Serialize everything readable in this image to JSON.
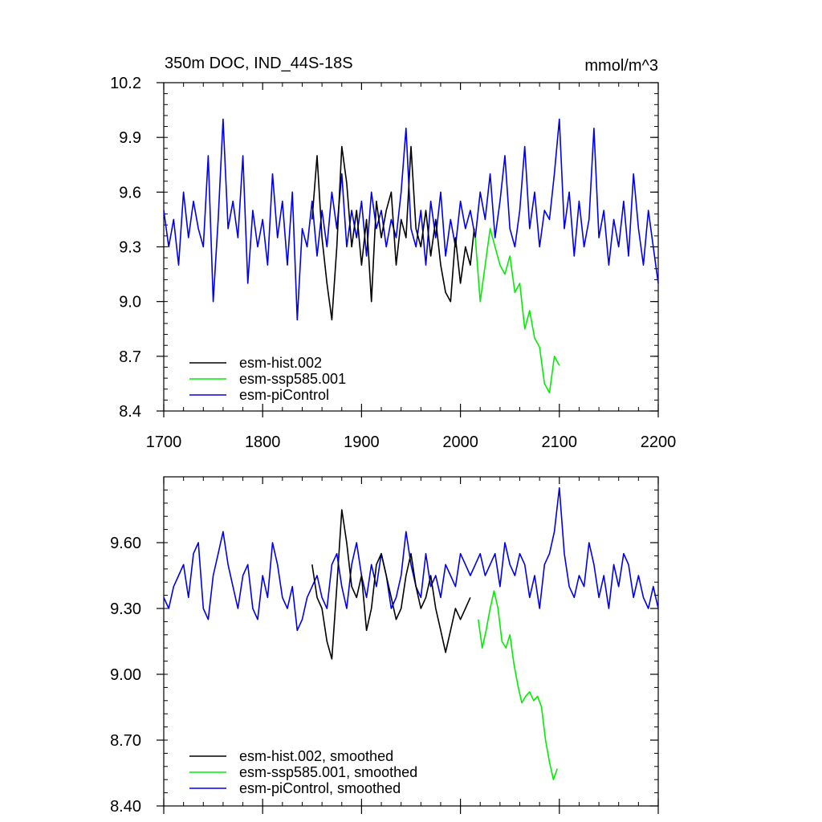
{
  "chart_data": [
    {
      "type": "line",
      "title": "350m DOC, IND_44S-18S",
      "units": "mmol/m^3",
      "xlabel": "",
      "ylabel": "",
      "xlim": [
        1700,
        2200
      ],
      "ylim": [
        8.4,
        10.2
      ],
      "x_ticks": [
        1700,
        1800,
        1900,
        2000,
        2100,
        2200
      ],
      "x_tick_labels": [
        "1700",
        "1800",
        "1900",
        "2000",
        "2100",
        "2200"
      ],
      "y_ticks": [
        8.4,
        8.7,
        9.0,
        9.3,
        9.6,
        9.9,
        10.2
      ],
      "y_tick_labels": [
        "8.4",
        "8.7",
        "9.0",
        "9.3",
        "9.6",
        "9.9",
        "10.2"
      ],
      "legend_position": "bottom-left",
      "series": [
        {
          "name": "esm-hist.002",
          "color": "#000000",
          "x": [
            1850,
            1855,
            1860,
            1865,
            1870,
            1875,
            1880,
            1885,
            1890,
            1895,
            1900,
            1905,
            1910,
            1915,
            1920,
            1925,
            1930,
            1935,
            1940,
            1945,
            1950,
            1955,
            1960,
            1965,
            1970,
            1975,
            1980,
            1985,
            1990,
            1995,
            2000,
            2005,
            2010,
            2014
          ],
          "values": [
            9.45,
            9.8,
            9.35,
            9.1,
            8.9,
            9.3,
            9.85,
            9.65,
            9.3,
            9.5,
            9.2,
            9.45,
            9.0,
            9.55,
            9.35,
            9.5,
            9.6,
            9.2,
            9.45,
            9.35,
            9.85,
            9.4,
            9.3,
            9.5,
            9.25,
            9.45,
            9.2,
            9.05,
            9.0,
            9.35,
            9.1,
            9.3,
            9.2,
            9.4
          ]
        },
        {
          "name": "esm-ssp585.001",
          "color": "#00ee00",
          "x": [
            2015,
            2020,
            2025,
            2030,
            2035,
            2040,
            2045,
            2050,
            2055,
            2060,
            2065,
            2070,
            2075,
            2080,
            2085,
            2090,
            2095,
            2100
          ],
          "values": [
            9.35,
            9.0,
            9.2,
            9.4,
            9.3,
            9.2,
            9.15,
            9.25,
            9.05,
            9.1,
            8.85,
            8.95,
            8.8,
            8.75,
            8.55,
            8.5,
            8.7,
            8.65
          ]
        },
        {
          "name": "esm-piControl",
          "color": "#0000ee",
          "x": [
            1700,
            1705,
            1710,
            1715,
            1720,
            1725,
            1730,
            1735,
            1740,
            1745,
            1750,
            1755,
            1760,
            1765,
            1770,
            1775,
            1780,
            1785,
            1790,
            1795,
            1800,
            1805,
            1810,
            1815,
            1820,
            1825,
            1830,
            1835,
            1840,
            1845,
            1850,
            1855,
            1860,
            1865,
            1870,
            1875,
            1880,
            1885,
            1890,
            1895,
            1900,
            1905,
            1910,
            1915,
            1920,
            1925,
            1930,
            1935,
            1940,
            1945,
            1950,
            1955,
            1960,
            1965,
            1970,
            1975,
            1980,
            1985,
            1990,
            1995,
            2000,
            2005,
            2010,
            2015,
            2020,
            2025,
            2030,
            2035,
            2040,
            2045,
            2050,
            2055,
            2060,
            2065,
            2070,
            2075,
            2080,
            2085,
            2090,
            2095,
            2100,
            2105,
            2110,
            2115,
            2120,
            2125,
            2130,
            2135,
            2140,
            2145,
            2150,
            2155,
            2160,
            2165,
            2170,
            2175,
            2180,
            2185,
            2190,
            2195,
            2200
          ],
          "values": [
            9.5,
            9.3,
            9.45,
            9.2,
            9.6,
            9.35,
            9.55,
            9.4,
            9.3,
            9.8,
            9.0,
            9.45,
            10.0,
            9.4,
            9.55,
            9.35,
            9.8,
            9.1,
            9.5,
            9.3,
            9.45,
            9.2,
            9.7,
            9.35,
            9.55,
            9.2,
            9.6,
            8.9,
            9.4,
            9.3,
            9.55,
            9.25,
            9.5,
            9.3,
            9.6,
            9.4,
            9.7,
            9.3,
            9.5,
            9.35,
            9.55,
            9.25,
            9.6,
            9.4,
            9.5,
            9.3,
            9.45,
            9.35,
            9.6,
            9.95,
            9.4,
            9.3,
            9.5,
            9.2,
            9.55,
            9.35,
            9.6,
            9.25,
            9.45,
            9.3,
            9.55,
            9.4,
            9.5,
            9.35,
            9.6,
            9.45,
            9.7,
            9.35,
            9.55,
            9.8,
            9.4,
            9.3,
            9.5,
            9.85,
            9.4,
            9.6,
            9.3,
            9.5,
            9.45,
            9.7,
            10.0,
            9.4,
            9.6,
            9.25,
            9.55,
            9.3,
            9.45,
            9.95,
            9.35,
            9.5,
            9.2,
            9.45,
            9.3,
            9.55,
            9.25,
            9.7,
            9.4,
            9.2,
            9.5,
            9.3,
            9.1
          ]
        }
      ]
    },
    {
      "type": "line",
      "title": "",
      "xlabel": "",
      "ylabel": "",
      "xlim": [
        1700,
        2200
      ],
      "ylim": [
        8.4,
        9.9
      ],
      "x_ticks": [
        1700,
        1800,
        1900,
        2000,
        2100,
        2200
      ],
      "y_ticks": [
        8.4,
        8.7,
        9.0,
        9.3,
        9.6
      ],
      "y_tick_labels": [
        "8.40",
        "8.70",
        "9.00",
        "9.30",
        "9.60"
      ],
      "legend_position": "bottom-left",
      "series": [
        {
          "name": "esm-hist.002, smoothed",
          "color": "#000000",
          "x": [
            1850,
            1855,
            1860,
            1865,
            1870,
            1875,
            1880,
            1885,
            1890,
            1895,
            1900,
            1905,
            1910,
            1915,
            1920,
            1925,
            1930,
            1935,
            1940,
            1945,
            1950,
            1955,
            1960,
            1965,
            1970,
            1975,
            1980,
            1985,
            1990,
            1995,
            2000,
            2005,
            2010
          ],
          "values": [
            9.5,
            9.35,
            9.3,
            9.15,
            9.07,
            9.4,
            9.75,
            9.6,
            9.4,
            9.35,
            9.45,
            9.2,
            9.3,
            9.5,
            9.55,
            9.45,
            9.35,
            9.25,
            9.3,
            9.45,
            9.55,
            9.4,
            9.3,
            9.35,
            9.45,
            9.3,
            9.2,
            9.1,
            9.2,
            9.3,
            9.25,
            9.3,
            9.35
          ]
        },
        {
          "name": "esm-ssp585.001, smoothed",
          "color": "#00ee00",
          "x": [
            2018,
            2022,
            2026,
            2030,
            2034,
            2038,
            2042,
            2046,
            2050,
            2054,
            2058,
            2062,
            2066,
            2070,
            2074,
            2078,
            2082,
            2086,
            2090,
            2094,
            2098
          ],
          "values": [
            9.25,
            9.12,
            9.2,
            9.3,
            9.38,
            9.3,
            9.15,
            9.12,
            9.18,
            9.05,
            8.95,
            8.87,
            8.9,
            8.92,
            8.88,
            8.9,
            8.85,
            8.7,
            8.6,
            8.52,
            8.57
          ]
        },
        {
          "name": "esm-piControl, smoothed",
          "color": "#0000ee",
          "x": [
            1700,
            1705,
            1710,
            1715,
            1720,
            1725,
            1730,
            1735,
            1740,
            1745,
            1750,
            1755,
            1760,
            1765,
            1770,
            1775,
            1780,
            1785,
            1790,
            1795,
            1800,
            1805,
            1810,
            1815,
            1820,
            1825,
            1830,
            1835,
            1840,
            1845,
            1850,
            1855,
            1860,
            1865,
            1870,
            1875,
            1880,
            1885,
            1890,
            1895,
            1900,
            1905,
            1910,
            1915,
            1920,
            1925,
            1930,
            1935,
            1940,
            1945,
            1950,
            1955,
            1960,
            1965,
            1970,
            1975,
            1980,
            1985,
            1990,
            1995,
            2000,
            2005,
            2010,
            2015,
            2020,
            2025,
            2030,
            2035,
            2040,
            2045,
            2050,
            2055,
            2060,
            2065,
            2070,
            2075,
            2080,
            2085,
            2090,
            2095,
            2100,
            2105,
            2110,
            2115,
            2120,
            2125,
            2130,
            2135,
            2140,
            2145,
            2150,
            2155,
            2160,
            2165,
            2170,
            2175,
            2180,
            2185,
            2190,
            2195,
            2200
          ],
          "values": [
            9.35,
            9.3,
            9.4,
            9.45,
            9.5,
            9.35,
            9.55,
            9.6,
            9.3,
            9.25,
            9.45,
            9.55,
            9.65,
            9.5,
            9.4,
            9.3,
            9.45,
            9.5,
            9.3,
            9.25,
            9.45,
            9.35,
            9.6,
            9.5,
            9.35,
            9.3,
            9.4,
            9.2,
            9.25,
            9.35,
            9.4,
            9.45,
            9.35,
            9.3,
            9.5,
            9.55,
            9.4,
            9.3,
            9.5,
            9.6,
            9.45,
            9.35,
            9.5,
            9.4,
            9.55,
            9.45,
            9.3,
            9.35,
            9.45,
            9.65,
            9.5,
            9.4,
            9.35,
            9.55,
            9.4,
            9.45,
            9.35,
            9.5,
            9.45,
            9.4,
            9.55,
            9.5,
            9.45,
            9.5,
            9.55,
            9.45,
            9.5,
            9.55,
            9.4,
            9.6,
            9.5,
            9.45,
            9.55,
            9.5,
            9.35,
            9.45,
            9.3,
            9.5,
            9.55,
            9.65,
            9.85,
            9.55,
            9.4,
            9.35,
            9.45,
            9.4,
            9.6,
            9.5,
            9.35,
            9.45,
            9.3,
            9.5,
            9.4,
            9.55,
            9.5,
            9.35,
            9.45,
            9.35,
            9.3,
            9.4,
            9.3
          ]
        }
      ]
    }
  ]
}
